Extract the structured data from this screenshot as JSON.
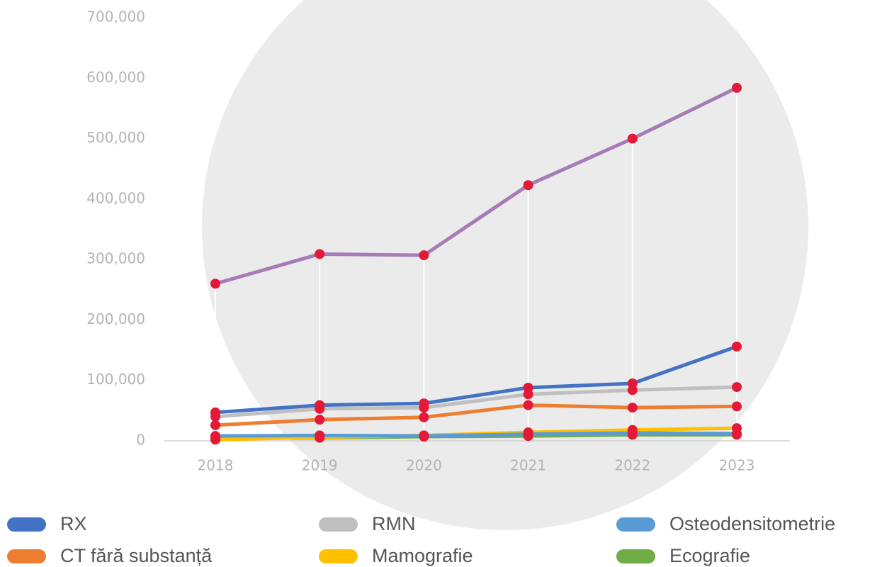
{
  "chart_data": {
    "type": "line",
    "categories": [
      "2018",
      "2019",
      "2020",
      "2021",
      "2022",
      "2023"
    ],
    "series": [
      {
        "name": "RX",
        "color": "#4472c4",
        "values": [
          47000,
          59000,
          62000,
          88000,
          95000,
          156000
        ]
      },
      {
        "name": "RMN",
        "color": "#bfbfbf",
        "values": [
          40000,
          53000,
          55000,
          77000,
          84000,
          89000
        ]
      },
      {
        "name": "Osteodensitometrie",
        "color": "#5b9bd5",
        "values": [
          8000,
          9000,
          8000,
          11000,
          13000,
          12000
        ]
      },
      {
        "name": "CT fără substanță",
        "color": "#ed7d31",
        "values": [
          26000,
          35000,
          39000,
          59000,
          55000,
          57000
        ]
      },
      {
        "name": "Mamografie",
        "color": "#ffc000",
        "values": [
          2000,
          6000,
          9000,
          14000,
          18000,
          21000
        ]
      },
      {
        "name": "Ecografie",
        "color": "#70ad47",
        "values": [
          4000,
          5000,
          7000,
          8000,
          10000,
          10000
        ]
      },
      {
        "color": "#a77bb8",
        "values": [
          260000,
          309000,
          307000,
          423000,
          500000,
          584000
        ]
      }
    ],
    "marker_color": "#e31937",
    "ylim": [
      0,
      700000
    ],
    "yticks": [
      0,
      {
        "value": 100000,
        "label": "100,000"
      },
      {
        "value": 200000,
        "label": "200,000"
      },
      {
        "value": 300000,
        "label": "300,000"
      },
      {
        "value": 400000,
        "label": "400,000"
      },
      {
        "value": 500000,
        "label": "500,000"
      },
      {
        "value": 600000,
        "label": "600,000"
      },
      {
        "value": 700000,
        "label": "700,000"
      }
    ],
    "legend": "bottom"
  }
}
